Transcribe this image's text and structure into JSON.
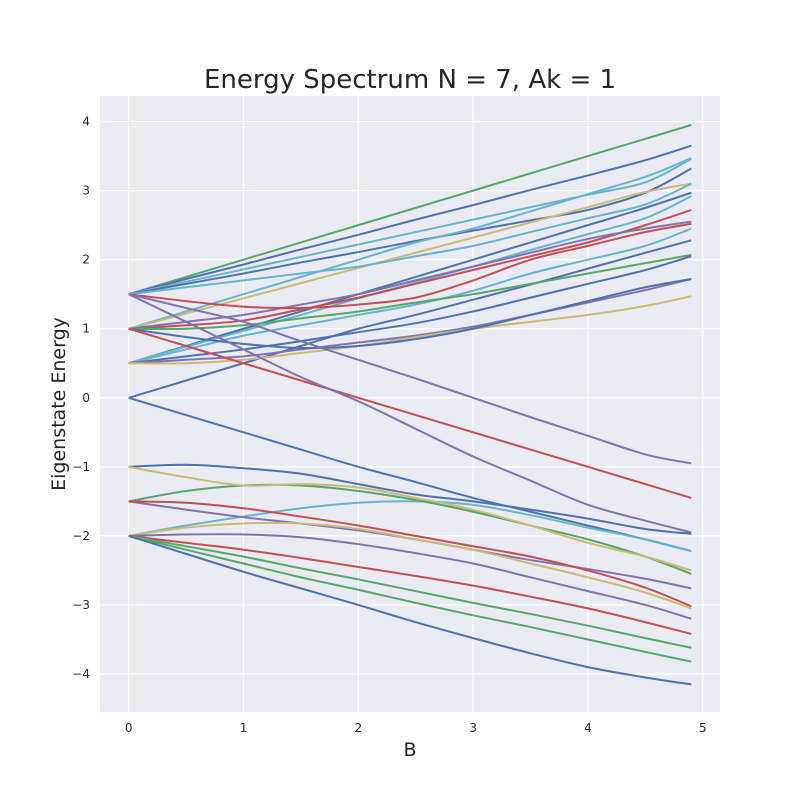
{
  "chart_data": {
    "type": "line",
    "title": "Energy Spectrum N = 7, Ak = 1",
    "xlabel": "B",
    "ylabel": "Eigenstate Energy",
    "xlim": [
      -0.25,
      5.15
    ],
    "ylim": [
      -4.55,
      4.37
    ],
    "xticks": [
      0,
      1,
      2,
      3,
      4,
      5
    ],
    "xtick_labels": [
      "0",
      "1",
      "2",
      "3",
      "4",
      "5"
    ],
    "yticks": [
      -4,
      -3,
      -2,
      -1,
      0,
      1,
      2,
      3,
      4
    ],
    "ytick_labels": [
      "−4",
      "−3",
      "−2",
      "−1",
      "0",
      "1",
      "2",
      "3",
      "4"
    ],
    "grid": true,
    "legend": "none",
    "style": "seaborn-darkgrid",
    "colors": {
      "background": "#eaeaf2",
      "grid": "#ffffff",
      "palette": [
        "#4c72b0",
        "#55a868",
        "#c44e52",
        "#8172b2",
        "#ccb974",
        "#64b5cd"
      ]
    },
    "x": [
      0,
      0.5,
      1,
      1.5,
      2,
      2.5,
      3,
      3.5,
      4,
      4.5,
      4.9
    ],
    "series": [
      {
        "color": "#55a868",
        "values": [
          1.5,
          1.75,
          2.0,
          2.25,
          2.5,
          2.75,
          3.0,
          3.25,
          3.5,
          3.75,
          3.95
        ]
      },
      {
        "color": "#4c72b0",
        "values": [
          1.5,
          1.72,
          1.93,
          2.15,
          2.36,
          2.58,
          2.79,
          3.01,
          3.22,
          3.44,
          3.65
        ]
      },
      {
        "color": "#64b5cd",
        "values": [
          1.5,
          1.68,
          1.86,
          2.04,
          2.22,
          2.4,
          2.58,
          2.76,
          2.94,
          3.12,
          3.46
        ]
      },
      {
        "color": "#4c72b0",
        "values": [
          1.5,
          1.65,
          1.8,
          1.96,
          2.11,
          2.27,
          2.42,
          2.57,
          2.72,
          2.97,
          3.32
        ]
      },
      {
        "color": "#64b5cd",
        "values": [
          1.0,
          1.25,
          1.5,
          1.75,
          2.0,
          2.25,
          2.45,
          2.7,
          2.95,
          3.2,
          3.47
        ]
      },
      {
        "color": "#ccb974",
        "values": [
          1.0,
          1.22,
          1.44,
          1.66,
          1.88,
          2.1,
          2.32,
          2.54,
          2.76,
          2.98,
          3.1
        ]
      },
      {
        "color": "#64b5cd",
        "values": [
          1.5,
          1.6,
          1.7,
          1.8,
          1.9,
          2.05,
          2.2,
          2.4,
          2.6,
          2.8,
          3.1
        ]
      },
      {
        "color": "#4c72b0",
        "values": [
          0.5,
          0.75,
          1.0,
          1.25,
          1.5,
          1.75,
          2.0,
          2.25,
          2.5,
          2.75,
          2.97
        ]
      },
      {
        "color": "#64b5cd",
        "values": [
          0.5,
          0.74,
          0.97,
          1.2,
          1.44,
          1.67,
          1.9,
          2.14,
          2.37,
          2.6,
          2.92
        ]
      },
      {
        "color": "#c44e52",
        "values": [
          1.0,
          1.05,
          1.12,
          1.28,
          1.45,
          1.65,
          1.85,
          2.05,
          2.25,
          2.5,
          2.72
        ]
      },
      {
        "color": "#8172b2",
        "values": [
          1.0,
          1.1,
          1.2,
          1.35,
          1.5,
          1.7,
          1.9,
          2.1,
          2.3,
          2.45,
          2.55
        ]
      },
      {
        "color": "#c44e52",
        "values": [
          1.5,
          1.4,
          1.32,
          1.3,
          1.35,
          1.45,
          1.7,
          2.0,
          2.2,
          2.4,
          2.52
        ]
      },
      {
        "color": "#64b5cd",
        "values": [
          0.5,
          0.7,
          0.9,
          1.05,
          1.2,
          1.35,
          1.55,
          1.8,
          2.0,
          2.2,
          2.45
        ]
      },
      {
        "color": "#4c72b0",
        "values": [
          0.0,
          0.25,
          0.5,
          0.75,
          1.0,
          1.2,
          1.42,
          1.64,
          1.87,
          2.1,
          2.28
        ]
      },
      {
        "color": "#55a868",
        "values": [
          1.0,
          1.0,
          1.05,
          1.15,
          1.25,
          1.38,
          1.5,
          1.65,
          1.8,
          1.95,
          2.07
        ]
      },
      {
        "color": "#4c72b0",
        "values": [
          0.5,
          0.6,
          0.7,
          0.82,
          0.95,
          1.08,
          1.25,
          1.45,
          1.65,
          1.85,
          2.05
        ]
      },
      {
        "color": "#8172b2",
        "values": [
          0.5,
          0.55,
          0.6,
          0.7,
          0.8,
          0.9,
          1.03,
          1.2,
          1.38,
          1.56,
          1.72
        ]
      },
      {
        "color": "#ccb974",
        "values": [
          0.5,
          0.5,
          0.55,
          0.65,
          0.75,
          0.88,
          1.0,
          1.1,
          1.2,
          1.33,
          1.47
        ]
      },
      {
        "color": "#4c72b0",
        "values": [
          1.0,
          0.88,
          0.78,
          0.72,
          0.75,
          0.85,
          1.0,
          1.2,
          1.4,
          1.6,
          1.72
        ]
      },
      {
        "color": "#8172b2",
        "values": [
          1.5,
          1.3,
          1.1,
          0.82,
          0.55,
          0.28,
          0.0,
          -0.28,
          -0.55,
          -0.82,
          -0.95
        ]
      },
      {
        "color": "#c44e52",
        "values": [
          1.0,
          0.75,
          0.5,
          0.25,
          0.0,
          -0.25,
          -0.5,
          -0.75,
          -1.0,
          -1.25,
          -1.45
        ]
      },
      {
        "color": "#4c72b0",
        "values": [
          0.0,
          -0.25,
          -0.5,
          -0.75,
          -1.0,
          -1.22,
          -1.45,
          -1.65,
          -1.85,
          -2.05,
          -2.22
        ]
      },
      {
        "color": "#8172b2",
        "values": [
          1.5,
          1.1,
          0.7,
          0.3,
          -0.05,
          -0.45,
          -0.85,
          -1.2,
          -1.55,
          -1.78,
          -1.95
        ]
      },
      {
        "color": "#64b5cd",
        "values": [
          -2.0,
          -1.85,
          -1.72,
          -1.6,
          -1.52,
          -1.5,
          -1.55,
          -1.7,
          -1.88,
          -2.05,
          -2.22
        ]
      },
      {
        "color": "#4c72b0",
        "values": [
          -1.0,
          -0.97,
          -1.02,
          -1.1,
          -1.25,
          -1.4,
          -1.5,
          -1.62,
          -1.75,
          -1.9,
          -1.97
        ]
      },
      {
        "color": "#55a868",
        "values": [
          -1.5,
          -1.35,
          -1.27,
          -1.27,
          -1.35,
          -1.48,
          -1.65,
          -1.85,
          -2.05,
          -2.3,
          -2.55
        ]
      },
      {
        "color": "#ccb974",
        "values": [
          -1.0,
          -1.15,
          -1.27,
          -1.25,
          -1.3,
          -1.45,
          -1.62,
          -1.85,
          -2.1,
          -2.3,
          -2.5
        ]
      },
      {
        "color": "#8172b2",
        "values": [
          -1.5,
          -1.62,
          -1.73,
          -1.82,
          -1.92,
          -2.05,
          -2.2,
          -2.35,
          -2.48,
          -2.62,
          -2.76
        ]
      },
      {
        "color": "#c44e52",
        "values": [
          -1.5,
          -1.52,
          -1.6,
          -1.72,
          -1.85,
          -2.0,
          -2.15,
          -2.3,
          -2.5,
          -2.75,
          -3.02
        ]
      },
      {
        "color": "#ccb974",
        "values": [
          -2.0,
          -1.88,
          -1.82,
          -1.82,
          -1.9,
          -2.05,
          -2.2,
          -2.4,
          -2.6,
          -2.82,
          -3.05
        ]
      },
      {
        "color": "#8172b2",
        "values": [
          -2.0,
          -1.98,
          -1.98,
          -2.02,
          -2.12,
          -2.25,
          -2.4,
          -2.6,
          -2.8,
          -3.0,
          -3.2
        ]
      },
      {
        "color": "#c44e52",
        "values": [
          -2.0,
          -2.1,
          -2.2,
          -2.32,
          -2.45,
          -2.58,
          -2.72,
          -2.88,
          -3.05,
          -3.25,
          -3.42
        ]
      },
      {
        "color": "#55a868",
        "values": [
          -2.0,
          -2.15,
          -2.3,
          -2.47,
          -2.63,
          -2.8,
          -2.97,
          -3.13,
          -3.3,
          -3.48,
          -3.62
        ]
      },
      {
        "color": "#55a868",
        "values": [
          -2.0,
          -2.2,
          -2.4,
          -2.6,
          -2.78,
          -2.97,
          -3.15,
          -3.32,
          -3.5,
          -3.68,
          -3.82
        ]
      },
      {
        "color": "#4c72b0",
        "values": [
          -2.0,
          -2.26,
          -2.52,
          -2.76,
          -3.0,
          -3.25,
          -3.48,
          -3.7,
          -3.9,
          -4.05,
          -4.15
        ]
      }
    ]
  }
}
